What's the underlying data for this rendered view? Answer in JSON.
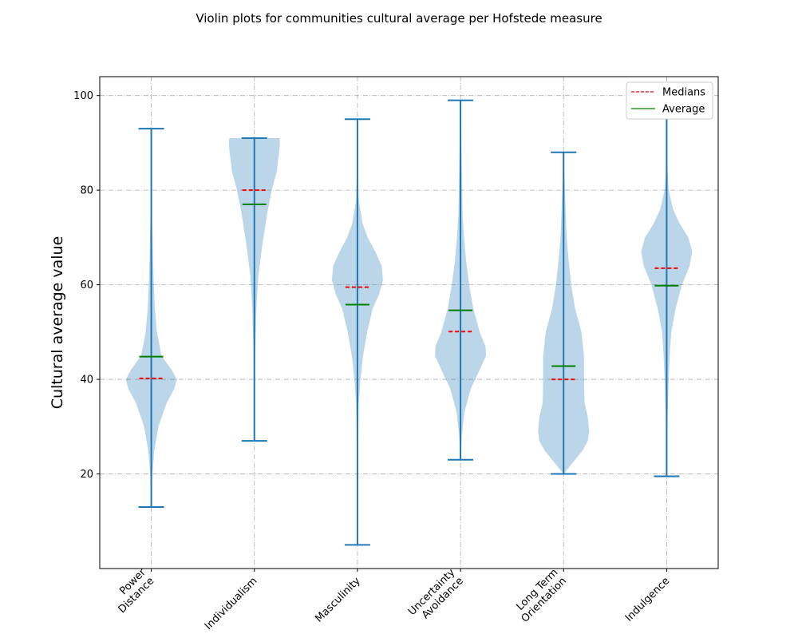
{
  "chart_data": {
    "type": "violin",
    "title": "Violin plots for communities cultural average per Hofstede measure",
    "xlabel": "",
    "ylabel": "Cultural average value",
    "ylim": [
      0,
      104
    ],
    "yticks": [
      20,
      40,
      60,
      80,
      100
    ],
    "grid": true,
    "legend_position": "top-right",
    "legend": [
      {
        "label": "Medians",
        "style": "dashed",
        "color": "#ff0000"
      },
      {
        "label": "Average",
        "style": "solid",
        "color": "#008000"
      }
    ],
    "categories": [
      [
        "Power",
        "Distance"
      ],
      [
        "Individualism"
      ],
      [
        "Masculinity"
      ],
      [
        "Uncertainty",
        "Avoidance"
      ],
      [
        "Long Term",
        "Orientation"
      ],
      [
        "Indulgence"
      ]
    ],
    "series": [
      {
        "min": 13,
        "max": 93,
        "median": 40.2,
        "mean": 44.8,
        "density": [
          [
            13,
            0
          ],
          [
            20,
            0.04
          ],
          [
            25,
            0.12
          ],
          [
            30,
            0.28
          ],
          [
            35,
            0.6
          ],
          [
            38,
            0.9
          ],
          [
            40,
            1.0
          ],
          [
            42,
            0.8
          ],
          [
            45,
            0.4
          ],
          [
            50,
            0.22
          ],
          [
            55,
            0.14
          ],
          [
            60,
            0.1
          ],
          [
            65,
            0.07
          ],
          [
            70,
            0.05
          ],
          [
            75,
            0.02
          ],
          [
            80,
            0.005
          ],
          [
            93,
            0
          ]
        ]
      },
      {
        "min": 27,
        "max": 91,
        "median": 80,
        "mean": 77,
        "density": [
          [
            27,
            0
          ],
          [
            35,
            0.01
          ],
          [
            45,
            0.03
          ],
          [
            55,
            0.08
          ],
          [
            62,
            0.16
          ],
          [
            68,
            0.3
          ],
          [
            75,
            0.5
          ],
          [
            80,
            0.68
          ],
          [
            84,
            0.88
          ],
          [
            86,
            0.92
          ],
          [
            88,
            0.97
          ],
          [
            90,
            1.0
          ],
          [
            91,
            0.98
          ]
        ]
      },
      {
        "min": 5,
        "max": 95,
        "median": 59.5,
        "mean": 55.8,
        "density": [
          [
            5,
            0
          ],
          [
            15,
            0.01
          ],
          [
            25,
            0.02
          ],
          [
            35,
            0.05
          ],
          [
            40,
            0.12
          ],
          [
            45,
            0.22
          ],
          [
            50,
            0.38
          ],
          [
            55,
            0.6
          ],
          [
            58,
            0.85
          ],
          [
            61,
            1.0
          ],
          [
            64,
            0.95
          ],
          [
            67,
            0.7
          ],
          [
            70,
            0.4
          ],
          [
            73,
            0.2
          ],
          [
            78,
            0.05
          ],
          [
            85,
            0.01
          ],
          [
            95,
            0
          ]
        ]
      },
      {
        "min": 23,
        "max": 99,
        "median": 50.1,
        "mean": 54.6,
        "density": [
          [
            23,
            0
          ],
          [
            28,
            0.05
          ],
          [
            33,
            0.15
          ],
          [
            38,
            0.4
          ],
          [
            42,
            0.75
          ],
          [
            45,
            1.0
          ],
          [
            47,
            0.98
          ],
          [
            50,
            0.75
          ],
          [
            55,
            0.5
          ],
          [
            60,
            0.34
          ],
          [
            65,
            0.22
          ],
          [
            70,
            0.14
          ],
          [
            75,
            0.08
          ],
          [
            85,
            0.05
          ],
          [
            95,
            0.01
          ],
          [
            99,
            0
          ]
        ]
      },
      {
        "min": 20,
        "max": 88,
        "median": 40,
        "mean": 42.8,
        "density": [
          [
            20,
            0
          ],
          [
            22,
            0.3
          ],
          [
            25,
            0.75
          ],
          [
            27,
            0.95
          ],
          [
            29,
            1.0
          ],
          [
            32,
            0.95
          ],
          [
            35,
            0.82
          ],
          [
            40,
            0.8
          ],
          [
            45,
            0.8
          ],
          [
            50,
            0.7
          ],
          [
            55,
            0.45
          ],
          [
            60,
            0.3
          ],
          [
            65,
            0.2
          ],
          [
            70,
            0.12
          ],
          [
            80,
            0.05
          ],
          [
            88,
            0
          ]
        ]
      },
      {
        "min": 19.5,
        "max": 100,
        "median": 63.5,
        "mean": 59.8,
        "density": [
          [
            19.5,
            0
          ],
          [
            30,
            0.02
          ],
          [
            40,
            0.08
          ],
          [
            45,
            0.12
          ],
          [
            50,
            0.18
          ],
          [
            55,
            0.35
          ],
          [
            60,
            0.6
          ],
          [
            64,
            0.9
          ],
          [
            67,
            1.0
          ],
          [
            70,
            0.85
          ],
          [
            73,
            0.5
          ],
          [
            76,
            0.25
          ],
          [
            80,
            0.08
          ],
          [
            85,
            0.02
          ],
          [
            100,
            0
          ]
        ]
      }
    ]
  }
}
